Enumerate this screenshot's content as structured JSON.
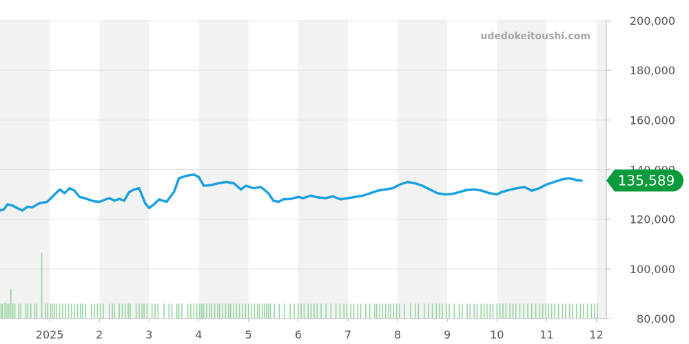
{
  "watermark": "udedokeitoushi.com",
  "colors": {
    "price_line": "#1a9fdf",
    "volume_bar": "#97d4a0",
    "band": "#f2f2f2",
    "badge": "#0b9a3c",
    "grid": "#e0e0e0",
    "axis": "#bbbbbb"
  },
  "chart_data": {
    "type": "line",
    "title": "",
    "xlabel": "",
    "ylabel": "",
    "ylim": [
      80000,
      200000
    ],
    "y_ticks": [
      "200,000",
      "180,000",
      "160,000",
      "140,000",
      "120,000",
      "100,000",
      "80,000"
    ],
    "y_tick_values": [
      200000,
      180000,
      160000,
      140000,
      120000,
      100000,
      80000
    ],
    "x_ticks": [
      "2025",
      "2",
      "3",
      "4",
      "5",
      "6",
      "7",
      "8",
      "9",
      "10",
      "11",
      "12"
    ],
    "x_tick_months": [
      0,
      1,
      2,
      3,
      4,
      5,
      6,
      7,
      8,
      9,
      10,
      11
    ],
    "x_range_months": [
      -1.0,
      11.2
    ],
    "grid": true,
    "current_value": 135589,
    "current_label": "135,589",
    "series": [
      {
        "type": "line",
        "points": [
          [
            -1.0,
            123500
          ],
          [
            -0.92,
            124000
          ],
          [
            -0.85,
            126000
          ],
          [
            -0.75,
            125500
          ],
          [
            -0.65,
            124500
          ],
          [
            -0.55,
            123500
          ],
          [
            -0.45,
            125000
          ],
          [
            -0.35,
            124800
          ],
          [
            -0.2,
            126500
          ],
          [
            -0.05,
            127000
          ],
          [
            0.1,
            130000
          ],
          [
            0.2,
            132000
          ],
          [
            0.3,
            130500
          ],
          [
            0.4,
            132500
          ],
          [
            0.5,
            131500
          ],
          [
            0.6,
            129000
          ],
          [
            0.7,
            128500
          ],
          [
            0.8,
            127800
          ],
          [
            0.9,
            127200
          ],
          [
            1.0,
            127000
          ],
          [
            1.1,
            127800
          ],
          [
            1.2,
            128500
          ],
          [
            1.3,
            127500
          ],
          [
            1.4,
            128200
          ],
          [
            1.5,
            127500
          ],
          [
            1.6,
            131000
          ],
          [
            1.7,
            132000
          ],
          [
            1.8,
            132500
          ],
          [
            1.92,
            126500
          ],
          [
            2.0,
            124500
          ],
          [
            2.1,
            126000
          ],
          [
            2.2,
            128000
          ],
          [
            2.35,
            127000
          ],
          [
            2.5,
            131000
          ],
          [
            2.6,
            136500
          ],
          [
            2.75,
            137500
          ],
          [
            2.9,
            138000
          ],
          [
            3.0,
            137000
          ],
          [
            3.1,
            133500
          ],
          [
            3.25,
            133800
          ],
          [
            3.4,
            134500
          ],
          [
            3.55,
            135000
          ],
          [
            3.7,
            134500
          ],
          [
            3.85,
            132000
          ],
          [
            3.95,
            133500
          ],
          [
            4.1,
            132500
          ],
          [
            4.25,
            133000
          ],
          [
            4.4,
            130500
          ],
          [
            4.5,
            127500
          ],
          [
            4.6,
            127000
          ],
          [
            4.7,
            128000
          ],
          [
            4.85,
            128200
          ],
          [
            5.0,
            129000
          ],
          [
            5.1,
            128500
          ],
          [
            5.25,
            129500
          ],
          [
            5.4,
            128800
          ],
          [
            5.55,
            128500
          ],
          [
            5.7,
            129200
          ],
          [
            5.85,
            128000
          ],
          [
            6.0,
            128500
          ],
          [
            6.15,
            129000
          ],
          [
            6.3,
            129500
          ],
          [
            6.45,
            130500
          ],
          [
            6.6,
            131500
          ],
          [
            6.75,
            132000
          ],
          [
            6.9,
            132500
          ],
          [
            7.05,
            134000
          ],
          [
            7.2,
            135000
          ],
          [
            7.35,
            134500
          ],
          [
            7.5,
            133500
          ],
          [
            7.65,
            132000
          ],
          [
            7.8,
            130500
          ],
          [
            7.95,
            130000
          ],
          [
            8.1,
            130200
          ],
          [
            8.25,
            131000
          ],
          [
            8.4,
            131800
          ],
          [
            8.55,
            132000
          ],
          [
            8.7,
            131500
          ],
          [
            8.85,
            130500
          ],
          [
            9.0,
            130000
          ],
          [
            9.1,
            131000
          ],
          [
            9.25,
            131800
          ],
          [
            9.4,
            132500
          ],
          [
            9.55,
            133000
          ],
          [
            9.7,
            131500
          ],
          [
            9.85,
            132500
          ],
          [
            10.0,
            134000
          ],
          [
            10.15,
            135000
          ],
          [
            10.3,
            136000
          ],
          [
            10.45,
            136500
          ],
          [
            10.6,
            135800
          ],
          [
            10.7,
            135589
          ]
        ]
      },
      {
        "type": "bar",
        "name": "",
        "x": [
          -0.98,
          -0.95,
          -0.9,
          -0.86,
          -0.82,
          -0.78,
          -0.74,
          -0.7,
          -0.62,
          -0.58,
          -0.48,
          -0.44,
          -0.38,
          -0.3,
          -0.26,
          -0.16,
          -0.08,
          -0.04,
          0.02,
          0.06,
          0.1,
          0.14,
          0.2,
          0.26,
          0.32,
          0.38,
          0.44,
          0.5,
          0.56,
          0.62,
          0.66,
          0.72,
          0.84,
          0.9,
          0.96,
          1.02,
          1.08,
          1.2,
          1.26,
          1.3,
          1.4,
          1.46,
          1.52,
          1.58,
          1.62,
          1.74,
          1.8,
          1.86,
          1.9,
          1.96,
          2.06,
          2.12,
          2.18,
          2.3,
          2.4,
          2.46,
          2.56,
          2.6,
          2.66,
          2.78,
          2.84,
          2.9,
          2.96,
          3.02,
          3.06,
          3.1,
          3.16,
          3.22,
          3.26,
          3.32,
          3.38,
          3.42,
          3.48,
          3.54,
          3.6,
          3.64,
          3.7,
          3.76,
          3.82,
          3.88,
          3.94,
          4.0,
          4.06,
          4.12,
          4.18,
          4.22,
          4.28,
          4.32,
          4.36,
          4.4,
          4.44,
          4.52,
          4.62,
          4.72,
          4.84,
          4.92,
          5.0,
          5.06,
          5.12,
          5.2,
          5.26,
          5.32,
          5.38,
          5.46,
          5.56,
          5.66,
          5.76,
          5.84,
          5.92,
          5.98,
          6.06,
          6.12,
          6.2,
          6.26,
          6.36,
          6.44,
          6.54,
          6.58,
          6.64,
          6.7,
          6.76,
          6.82,
          6.86,
          6.92,
          6.98,
          7.04,
          7.14,
          7.26,
          7.36,
          7.42,
          7.54,
          7.62,
          7.7,
          7.78,
          7.84,
          7.9,
          7.98,
          8.04,
          8.14,
          8.24,
          8.3,
          8.4,
          8.46,
          8.54,
          8.6,
          8.68,
          8.74,
          8.8,
          8.86,
          8.92,
          9.0,
          9.06,
          9.12,
          9.18,
          9.26,
          9.32,
          9.38,
          9.46,
          9.54,
          9.62,
          9.7,
          9.78,
          9.86,
          9.92,
          9.98,
          10.04,
          10.1,
          10.16,
          10.24,
          10.32,
          10.38,
          10.46,
          10.52,
          10.6,
          10.68,
          10.74,
          10.82,
          10.9,
          10.96,
          11.02
        ],
        "values": [
          86000,
          86000,
          86500,
          86000,
          86000,
          92000,
          86000,
          86000,
          86000,
          86000,
          86000,
          86000,
          86000,
          86000,
          86000,
          106500,
          86000,
          86000,
          86000,
          86000,
          86000,
          86000,
          86000,
          86000,
          86000,
          86000,
          86000,
          86000,
          86000,
          86000,
          86000,
          86000,
          86000,
          86000,
          86000,
          86000,
          86000,
          86000,
          86000,
          86000,
          86000,
          86000,
          86000,
          86000,
          86000,
          86000,
          86000,
          86000,
          86000,
          86000,
          86000,
          86000,
          86000,
          86000,
          86000,
          86000,
          86000,
          86000,
          86000,
          86000,
          86000,
          86000,
          86000,
          86000,
          86000,
          86000,
          86000,
          86000,
          86000,
          86000,
          86000,
          86000,
          86000,
          86000,
          86000,
          86000,
          86000,
          86000,
          86000,
          86000,
          86000,
          86000,
          86000,
          86000,
          86000,
          86000,
          86000,
          86000,
          86000,
          86000,
          86000,
          86000,
          86000,
          86000,
          86000,
          86000,
          86000,
          86000,
          86000,
          86000,
          86000,
          86000,
          86000,
          86000,
          86000,
          86000,
          86000,
          86000,
          86000,
          86000,
          86000,
          86000,
          86000,
          86000,
          86000,
          86000,
          86000,
          86000,
          86000,
          86000,
          86000,
          86000,
          86000,
          86000,
          86000,
          86000,
          86000,
          86000,
          86000,
          86000,
          86000,
          86000,
          86000,
          86000,
          86000,
          86000,
          86000,
          86000,
          86000,
          86000,
          86000,
          86000,
          86000,
          86000,
          86000,
          86000,
          86000,
          86000,
          86000,
          86000,
          86000,
          86000,
          86000,
          86000,
          86000,
          86000,
          86000,
          86000,
          86000,
          86000,
          86000,
          86000,
          86000,
          86000,
          86000,
          86000,
          86000,
          86000,
          86000,
          86000,
          86000,
          86000,
          86000,
          86000,
          86000,
          86000,
          86000,
          86000,
          86000,
          86000
        ]
      }
    ]
  }
}
